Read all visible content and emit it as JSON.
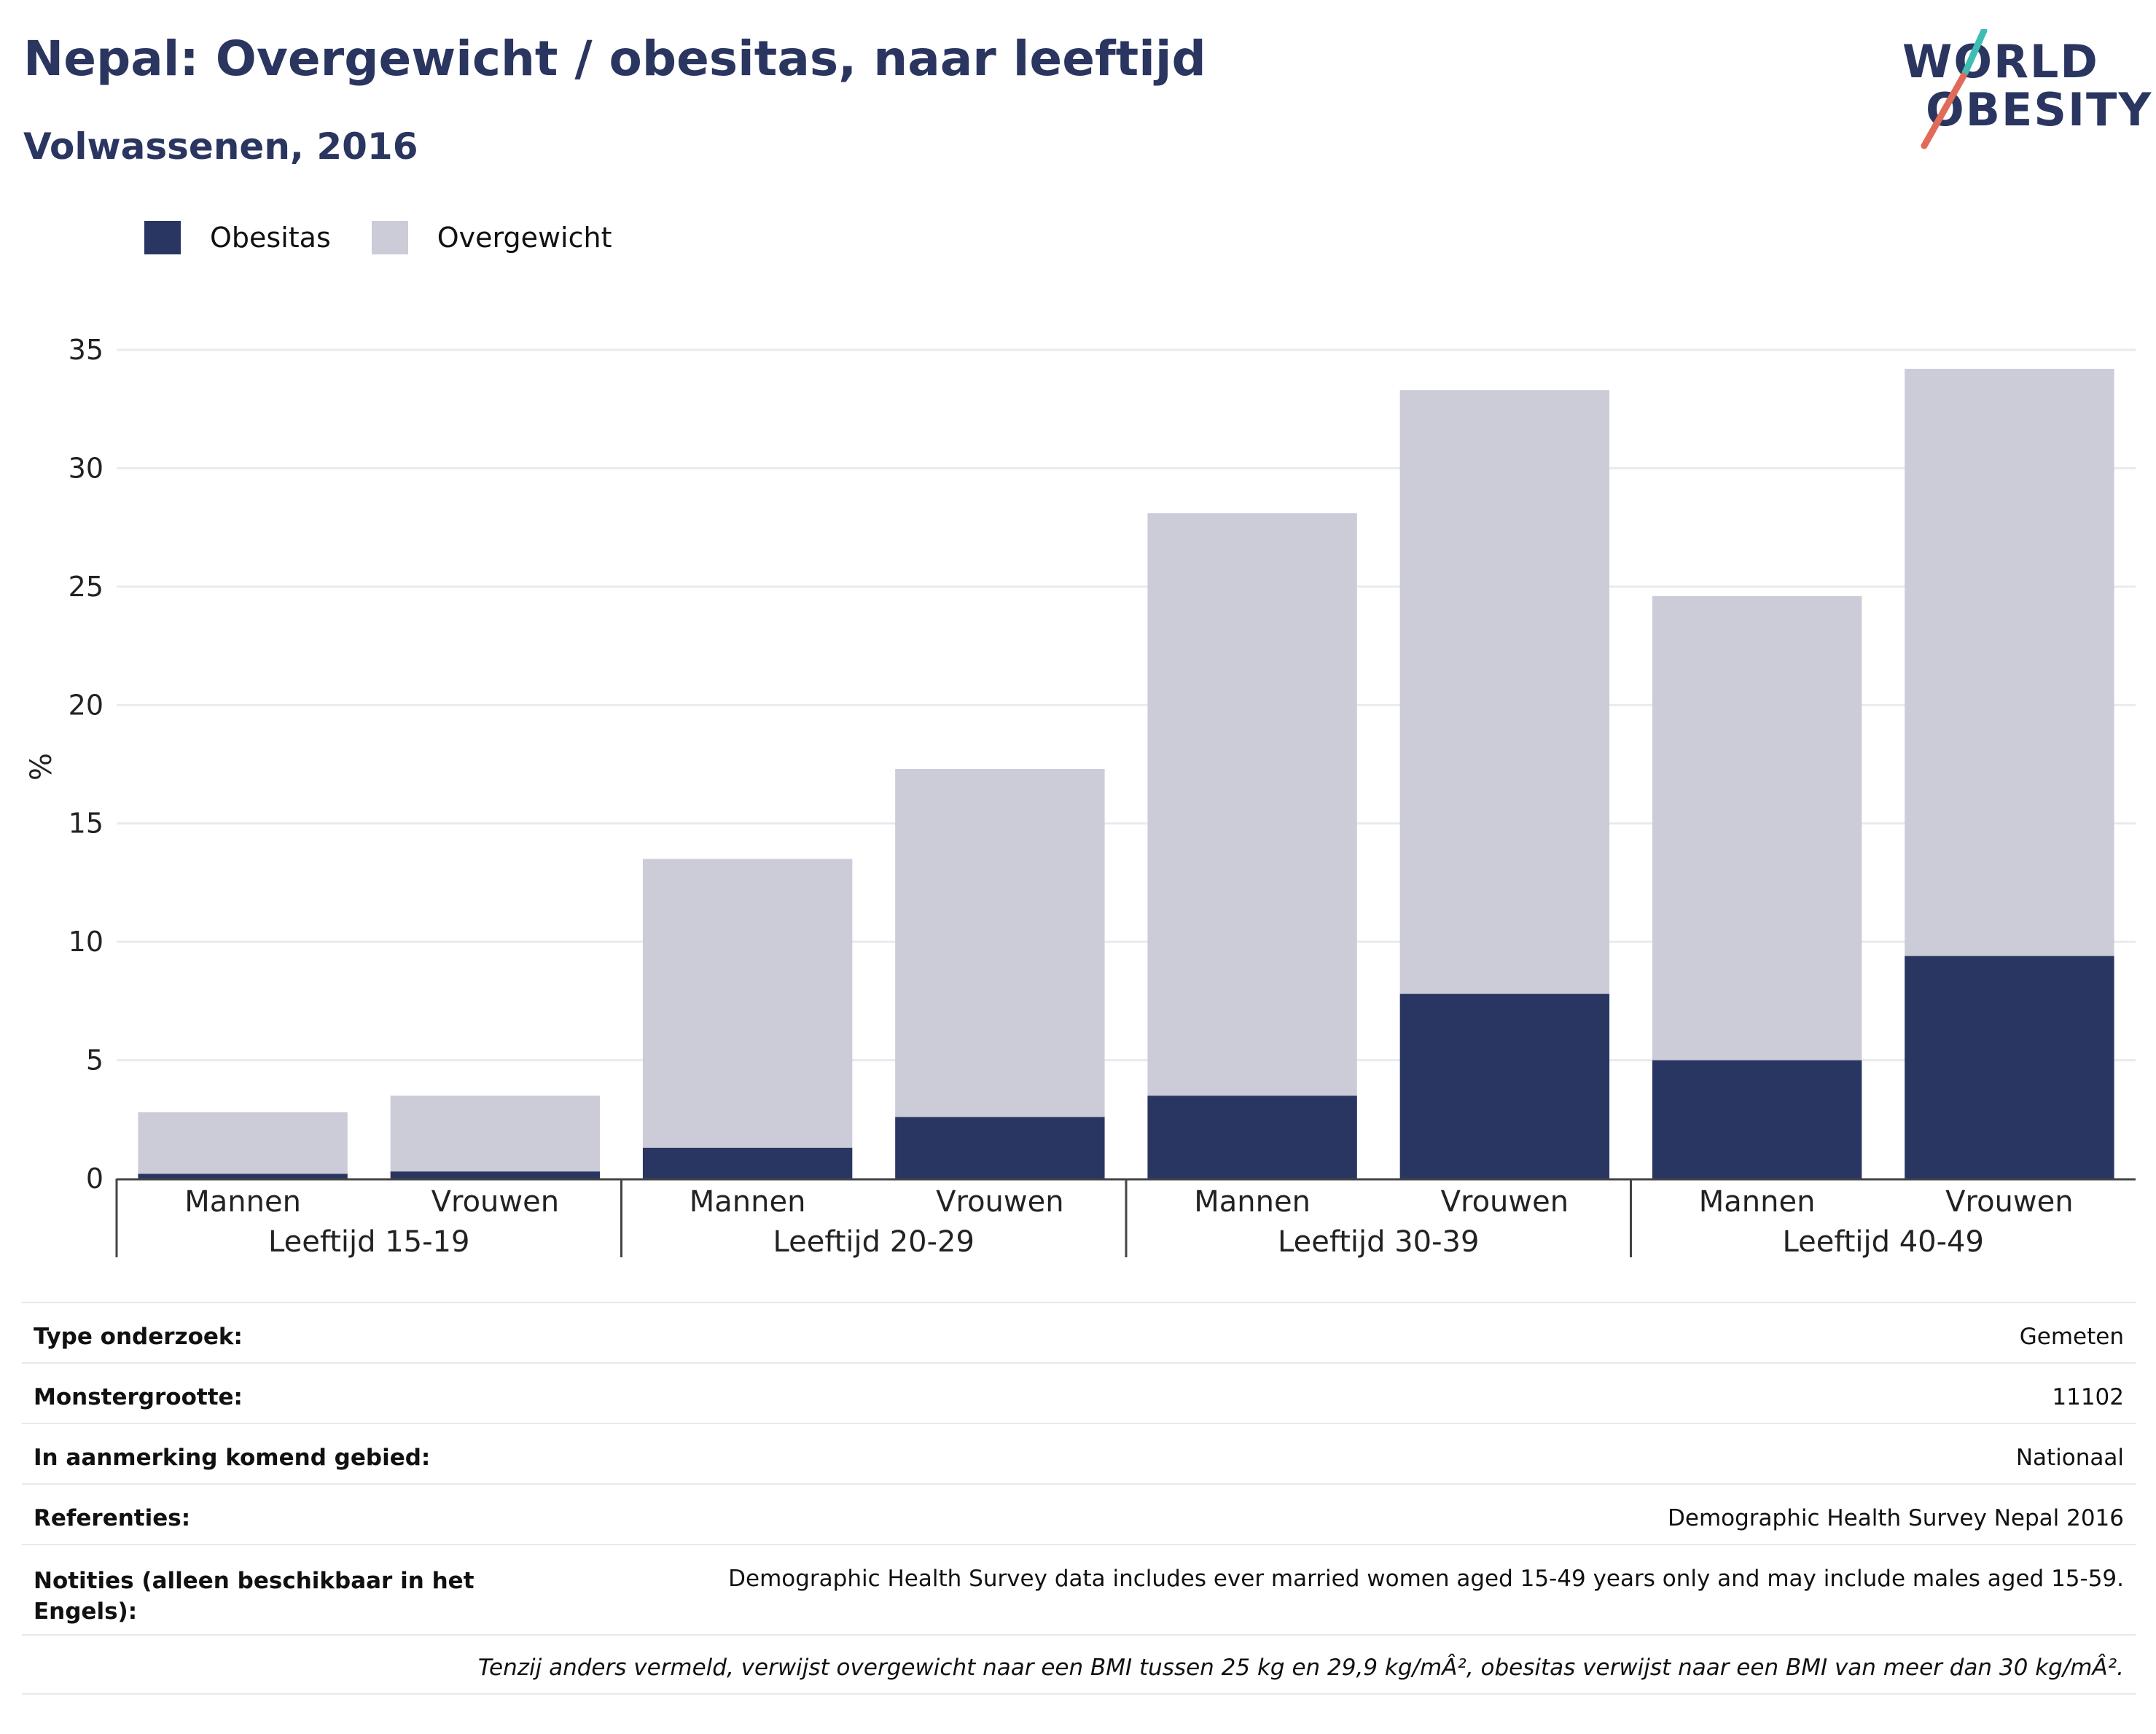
{
  "header": {
    "title": "Nepal: Overgewicht / obesitas, naar leeftijd",
    "subtitle": "Volwassenen, 2016"
  },
  "logo": {
    "line1": "WORLD",
    "line2": "OBESITY"
  },
  "colors": {
    "obesity": "#2a3662",
    "overweight": "#cbccd8",
    "grid": "#e8eaef",
    "axis": "#444444",
    "title": "#2a3560"
  },
  "chart_data": {
    "type": "bar",
    "stacked": true,
    "ylabel": "%",
    "ylim": [
      0,
      35
    ],
    "yticks": [
      0,
      5,
      10,
      15,
      20,
      25,
      30,
      35
    ],
    "grid": true,
    "legend_position": "top-left",
    "groups": [
      "Leeftijd 15-19",
      "Leeftijd 20-29",
      "Leeftijd 30-39",
      "Leeftijd 40-49"
    ],
    "categories": [
      "Mannen",
      "Vrouwen",
      "Mannen",
      "Vrouwen",
      "Mannen",
      "Vrouwen",
      "Mannen",
      "Vrouwen"
    ],
    "series": [
      {
        "name": "Obesitas",
        "color": "#2a3662",
        "values": [
          0.2,
          0.3,
          1.3,
          2.6,
          3.5,
          7.8,
          5.0,
          9.4
        ]
      },
      {
        "name": "Overgewicht",
        "color": "#cbccd8",
        "values": [
          2.6,
          3.2,
          12.2,
          14.7,
          24.6,
          25.5,
          19.6,
          24.8
        ]
      }
    ]
  },
  "info": {
    "rows": [
      {
        "key": "Type onderzoek:",
        "value": "Gemeten"
      },
      {
        "key": "Monstergrootte:",
        "value": "11102"
      },
      {
        "key": "In aanmerking komend gebied:",
        "value": "Nationaal"
      },
      {
        "key": "Referenties:",
        "value": "Demographic Health Survey Nepal 2016"
      },
      {
        "key": "Notities (alleen beschikbaar in het Engels):",
        "value": "Demographic Health Survey data includes ever married women aged 15-49 years only and may include males aged 15-59."
      }
    ],
    "note": "Tenzij anders vermeld, verwijst overgewicht naar een BMI tussen 25 kg en 29,9 kg/mÂ², obesitas verwijst naar een BMI van meer dan 30 kg/mÂ²."
  }
}
